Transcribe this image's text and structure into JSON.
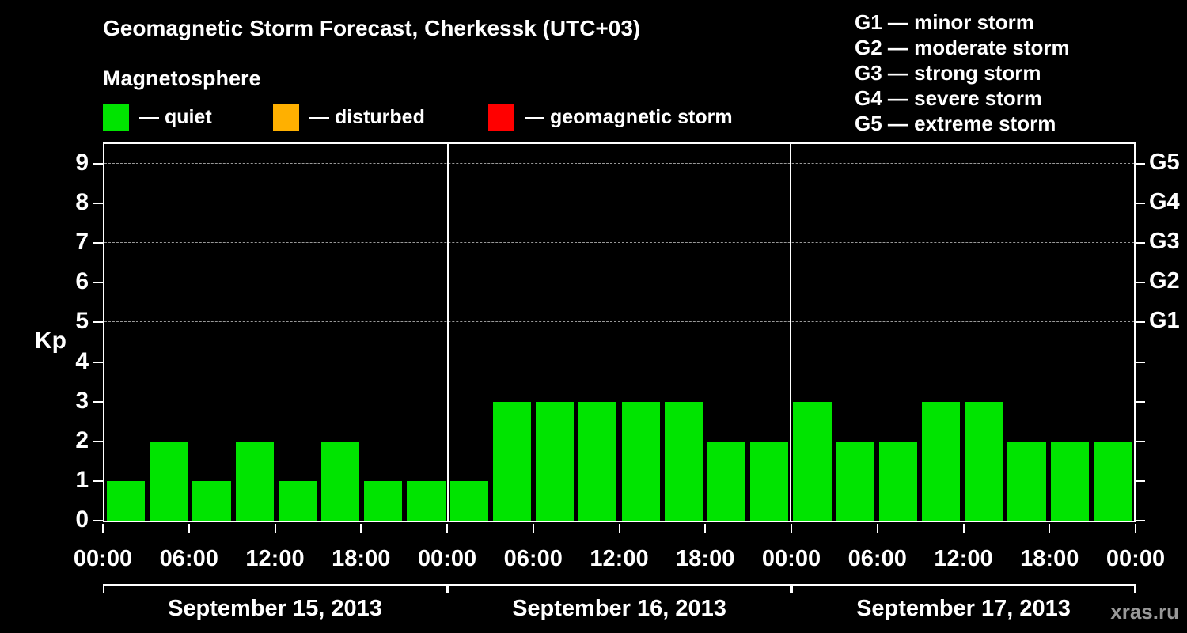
{
  "header": {
    "title": "Geomagnetic Storm Forecast, Cherkessk (UTC+03)",
    "subtitle": "Magnetosphere"
  },
  "legend": {
    "items": [
      {
        "name": "quiet",
        "label": "— quiet",
        "color": "#00e400"
      },
      {
        "name": "disturbed",
        "label": "— disturbed",
        "color": "#ffb000"
      },
      {
        "name": "geomagnetic-storm",
        "label": "— geomagnetic storm",
        "color": "#ff0000"
      }
    ]
  },
  "storm_scale": [
    {
      "code": "G1",
      "label": "— minor storm"
    },
    {
      "code": "G2",
      "label": "— moderate storm"
    },
    {
      "code": "G3",
      "label": "— strong storm"
    },
    {
      "code": "G4",
      "label": "— severe storm"
    },
    {
      "code": "G5",
      "label": "— extreme storm"
    }
  ],
  "watermark": "xras.ru",
  "chart_data": {
    "type": "bar",
    "title": "Geomagnetic Storm Forecast, Cherkessk (UTC+03)",
    "xlabel": "",
    "ylabel": "Kp",
    "ylim": [
      0,
      9.5
    ],
    "y_ticks": [
      0,
      1,
      2,
      3,
      4,
      5,
      6,
      7,
      8,
      9
    ],
    "gridlines_kp": [
      5,
      6,
      7,
      8,
      9
    ],
    "grid": "dashed horizontal lines at G-storm levels only",
    "legend_position": "top-left",
    "right_axis_labels": [
      {
        "kp": 5,
        "label": "G1"
      },
      {
        "kp": 6,
        "label": "G2"
      },
      {
        "kp": 7,
        "label": "G3"
      },
      {
        "kp": 8,
        "label": "G4"
      },
      {
        "kp": 9,
        "label": "G5"
      }
    ],
    "x_tick_labels": [
      "00:00",
      "06:00",
      "12:00",
      "18:00",
      "00:00",
      "06:00",
      "12:00",
      "18:00",
      "00:00",
      "06:00",
      "12:00",
      "18:00",
      "00:00"
    ],
    "interval_hours": 3,
    "bar_color": "#00e400",
    "days": [
      {
        "date": "September 15, 2013",
        "values": [
          1,
          2,
          1,
          2,
          1,
          2,
          1,
          1
        ]
      },
      {
        "date": "September 16, 2013",
        "values": [
          1,
          3,
          3,
          3,
          3,
          3,
          2,
          2
        ]
      },
      {
        "date": "September 17, 2013",
        "values": [
          3,
          2,
          2,
          3,
          3,
          2,
          2,
          2
        ]
      }
    ]
  }
}
